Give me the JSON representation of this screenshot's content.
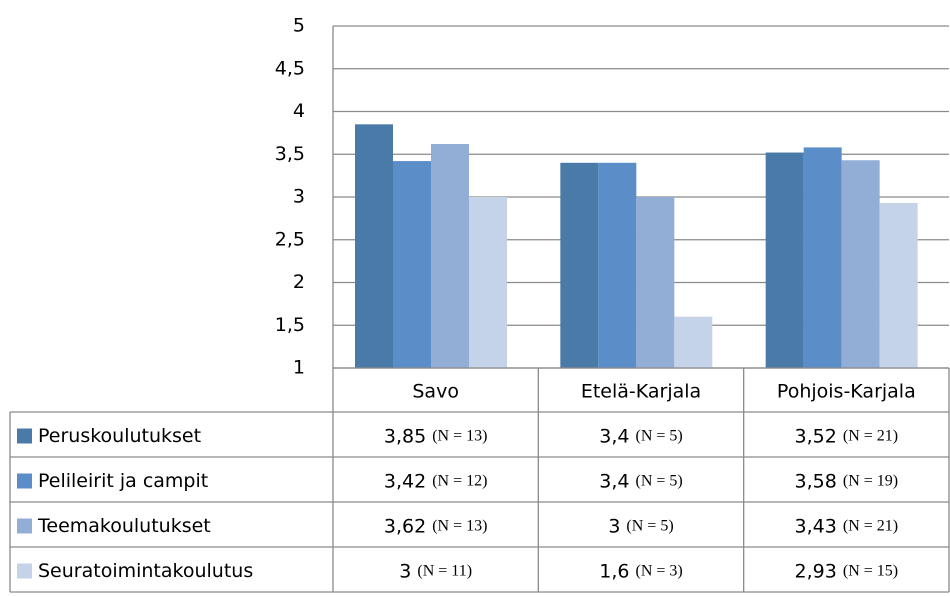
{
  "chart_data": {
    "type": "bar",
    "categories": [
      "Savo",
      "Etelä-Karjala",
      "Pohjois-Karjala"
    ],
    "series": [
      {
        "name": "Peruskoulutukset",
        "color": "#4a7aa8",
        "values": [
          3.85,
          3.4,
          3.52
        ],
        "value_labels": [
          "3,85",
          "3,4",
          "3,52"
        ],
        "n_labels": [
          "(N = 13)",
          "(N = 5)",
          "(N = 21)"
        ]
      },
      {
        "name": "Pelileirit ja campit",
        "color": "#5b8ec8",
        "values": [
          3.42,
          3.4,
          3.58
        ],
        "value_labels": [
          "3,42",
          "3,4",
          "3,58"
        ],
        "n_labels": [
          "(N = 12)",
          "(N = 5)",
          "(N = 19)"
        ]
      },
      {
        "name": "Teemakoulutukset",
        "color": "#93aed6",
        "values": [
          3.62,
          3,
          3.43
        ],
        "value_labels": [
          "3,62",
          "3",
          "3,43"
        ],
        "n_labels": [
          "(N = 13)",
          "(N = 5)",
          "(N = 21)"
        ]
      },
      {
        "name": "Seuratoimintakoulutus",
        "color": "#c5d3e8",
        "values": [
          3,
          1.6,
          2.93
        ],
        "value_labels": [
          "3",
          "1,6",
          "2,93"
        ],
        "n_labels": [
          "(N = 11)",
          "(N = 3)",
          "(N = 15)"
        ]
      }
    ],
    "ylim": [
      1,
      5
    ],
    "yticks": [
      1,
      {
        "value": 1.5,
        "label": "1,5"
      },
      2,
      {
        "value": 2.5,
        "label": "2,5"
      },
      3,
      {
        "value": 3.5,
        "label": "3,5"
      },
      4,
      {
        "value": 4.5,
        "label": "4,5"
      },
      5
    ],
    "grid": true
  }
}
